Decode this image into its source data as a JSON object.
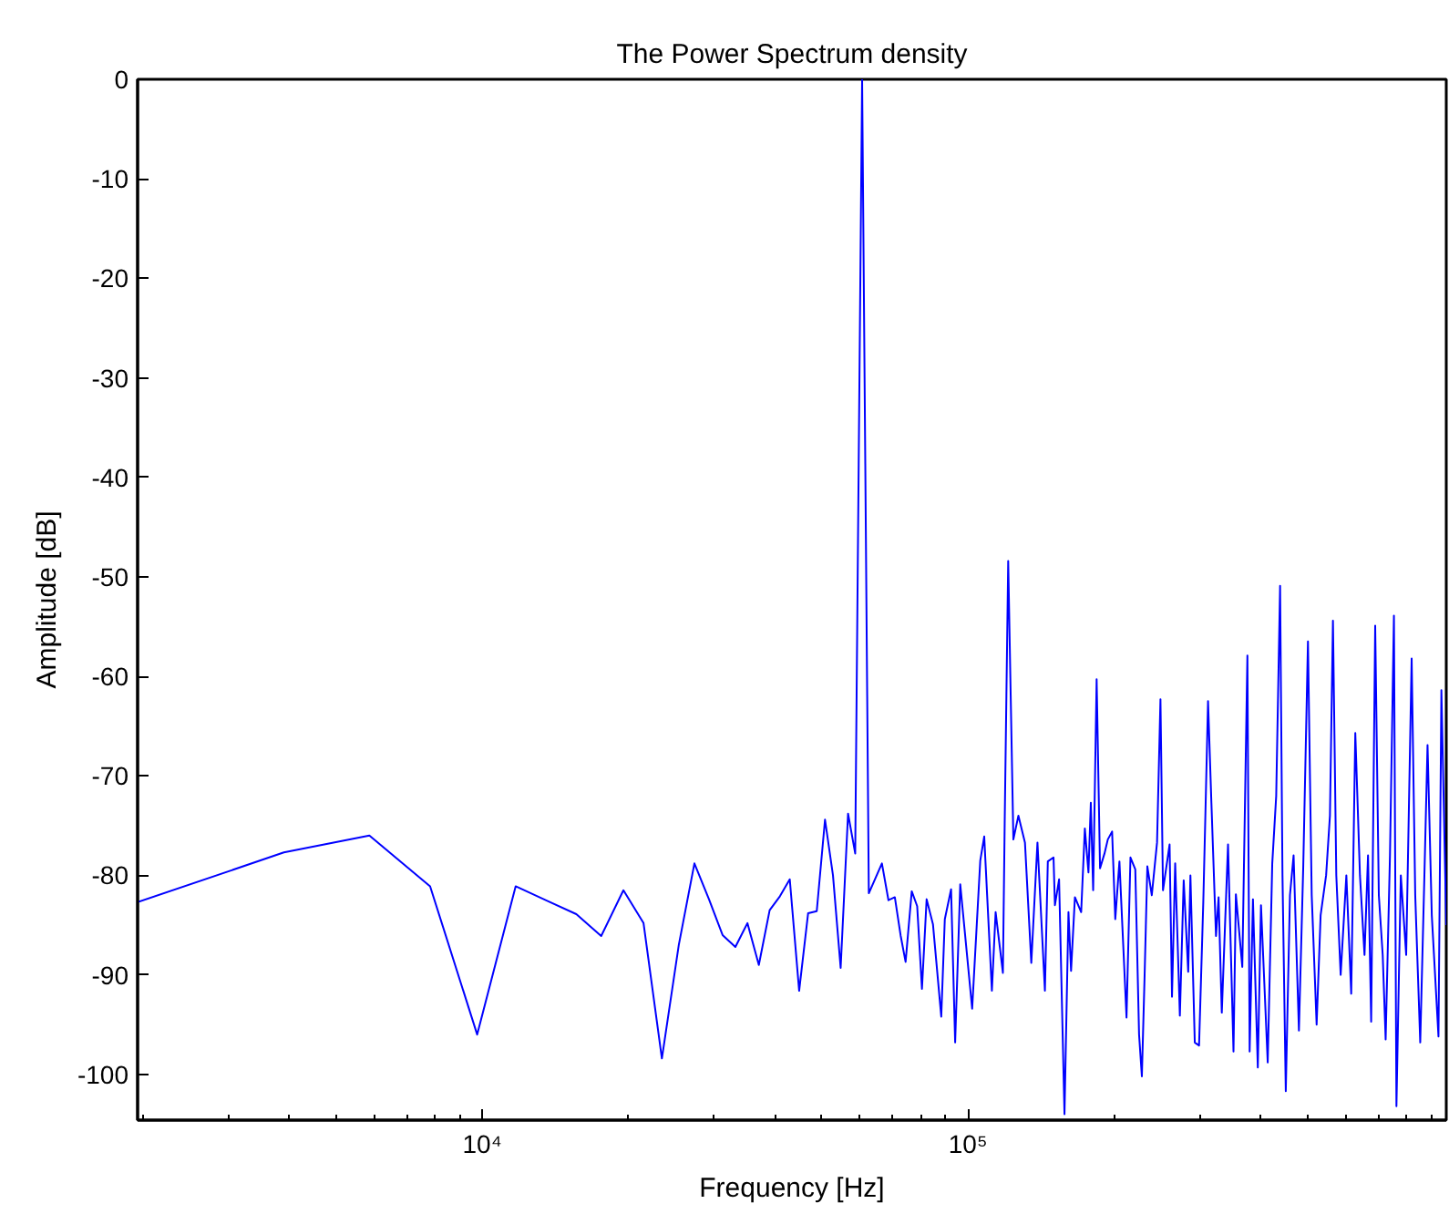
{
  "chart_data": {
    "type": "line",
    "title": "The Power Spectrum density",
    "xlabel": "Frequency [Hz]",
    "ylabel": "Amplitude [dB]",
    "log": "x",
    "grid": false,
    "marker": "none",
    "line_style": "solid",
    "xlim": [
      1953,
      965000
    ],
    "ylim": [
      -104.6,
      0
    ],
    "xticks": [
      {
        "value": 2000,
        "label": null
      },
      {
        "value": 3000,
        "label": null
      },
      {
        "value": 4000,
        "label": null
      },
      {
        "value": 5000,
        "label": null
      },
      {
        "value": 6000,
        "label": null
      },
      {
        "value": 7000,
        "label": null
      },
      {
        "value": 8000,
        "label": null
      },
      {
        "value": 9000,
        "label": null
      },
      {
        "value": 10000,
        "label": "10⁴"
      },
      {
        "value": 20000,
        "label": null
      },
      {
        "value": 30000,
        "label": null
      },
      {
        "value": 40000,
        "label": null
      },
      {
        "value": 50000,
        "label": null
      },
      {
        "value": 60000,
        "label": null
      },
      {
        "value": 70000,
        "label": null
      },
      {
        "value": 80000,
        "label": null
      },
      {
        "value": 90000,
        "label": null
      },
      {
        "value": 100000,
        "label": "10⁵"
      },
      {
        "value": 200000,
        "label": null
      },
      {
        "value": 300000,
        "label": null
      },
      {
        "value": 400000,
        "label": null
      },
      {
        "value": 500000,
        "label": null
      },
      {
        "value": 600000,
        "label": null
      },
      {
        "value": 700000,
        "label": null
      },
      {
        "value": 800000,
        "label": null
      },
      {
        "value": 900000,
        "label": null
      }
    ],
    "yticks": [
      -100,
      -90,
      -80,
      -70,
      -60,
      -50,
      -40,
      -30,
      -20,
      -10,
      0
    ],
    "series": [
      {
        "color": "#0000ff",
        "x": [
          1953,
          3906,
          5859,
          7813,
          9766,
          11719,
          13672,
          15625,
          17578,
          19531,
          21484,
          23438,
          25391,
          27344,
          29297,
          31250,
          33203,
          35156,
          37109,
          39063,
          41016,
          42969,
          44922,
          46875,
          48828,
          50781,
          52734,
          54688,
          56641,
          58594,
          60547,
          62500,
          66500,
          68600,
          70700,
          72700,
          74400,
          76600,
          78600,
          80400,
          82200,
          84700,
          88100,
          89600,
          92300,
          94100,
          96400,
          102000,
          106000,
          108000,
          112000,
          114000,
          118000,
          119000,
          121000,
          124000,
          127000,
          131000,
          135000,
          139000,
          144000,
          146000,
          150000,
          151000,
          154000,
          158000,
          161000,
          163000,
          166000,
          171000,
          174000,
          177000,
          179000,
          181000,
          184000,
          187000,
          191000,
          194000,
          198000,
          201000,
          205000,
          212000,
          216000,
          221000,
          225000,
          228000,
          231000,
          234000,
          239000,
          245000,
          249000,
          252000,
          260000,
          263000,
          267000,
          273000,
          278000,
          284000,
          287000,
          293000,
          299000,
          305000,
          308000,
          312000,
          317000,
          324000,
          328000,
          333000,
          343000,
          352000,
          356000,
          367000,
          376000,
          380000,
          386000,
          395000,
          401000,
          414000,
          423000,
          431000,
          439000,
          444000,
          451000,
          460000,
          468000,
          480000,
          490000,
          501000,
          510000,
          522000,
          532000,
          546000,
          556000,
          564000,
          573000,
          585000,
          601000,
          615000,
          627000,
          641000,
          655000,
          666000,
          676000,
          689000,
          701000,
          714000,
          724000,
          739000,
          753000,
          762000,
          778000,
          798000,
          819000,
          833000,
          853000,
          870000,
          883000,
          901000,
          930000,
          943000,
          965000
        ],
        "values": [
          -82.7,
          -77.7,
          -76.0,
          -81.1,
          -96.0,
          -81.1,
          -82.6,
          -83.9,
          -86.1,
          -81.5,
          -84.8,
          -98.4,
          -87.0,
          -78.8,
          -82.4,
          -86.0,
          -87.2,
          -84.8,
          -89.0,
          -83.5,
          -82.1,
          -80.4,
          -91.6,
          -83.8,
          -83.6,
          -74.4,
          -80.0,
          -89.3,
          -73.8,
          -77.8,
          0,
          -81.8,
          -78.8,
          -82.5,
          -82.2,
          -86.1,
          -88.7,
          -81.6,
          -83.1,
          -91.4,
          -82.4,
          -84.9,
          -94.2,
          -84.4,
          -81.4,
          -96.8,
          -80.9,
          -93.4,
          -78.5,
          -76.1,
          -91.6,
          -83.7,
          -89.8,
          -74.8,
          -48.4,
          -76.4,
          -74.0,
          -76.7,
          -88.8,
          -76.7,
          -91.6,
          -78.6,
          -78.2,
          -83.0,
          -80.4,
          -104.0,
          -83.7,
          -89.6,
          -82.2,
          -83.7,
          -75.3,
          -79.7,
          -72.7,
          -81.5,
          -60.3,
          -79.3,
          -77.8,
          -76.4,
          -75.6,
          -84.4,
          -78.6,
          -94.3,
          -78.2,
          -79.4,
          -96.0,
          -100.2,
          -90.0,
          -79.1,
          -82.0,
          -76.7,
          -62.3,
          -81.5,
          -76.9,
          -92.2,
          -78.8,
          -94.1,
          -80.5,
          -89.7,
          -80.0,
          -96.8,
          -97.1,
          -82.8,
          -74.2,
          -62.5,
          -72.7,
          -86.1,
          -82.2,
          -93.8,
          -76.9,
          -97.7,
          -81.9,
          -89.2,
          -57.9,
          -97.7,
          -82.4,
          -99.3,
          -83.0,
          -98.8,
          -78.8,
          -72.0,
          -50.9,
          -80.0,
          -101.7,
          -82.0,
          -78.0,
          -95.6,
          -79.0,
          -56.5,
          -82.0,
          -95.0,
          -84.0,
          -80.0,
          -74.0,
          -54.4,
          -80.0,
          -90.0,
          -80.0,
          -91.9,
          -65.7,
          -80.0,
          -88.0,
          -78.0,
          -94.7,
          -54.9,
          -82.0,
          -88.0,
          -96.5,
          -78.0,
          -53.9,
          -103.2,
          -80.0,
          -88.0,
          -58.2,
          -82.0,
          -96.8,
          -80.0,
          -66.9,
          -84.0,
          -96.2,
          -61.4,
          -85.0
        ]
      }
    ]
  }
}
